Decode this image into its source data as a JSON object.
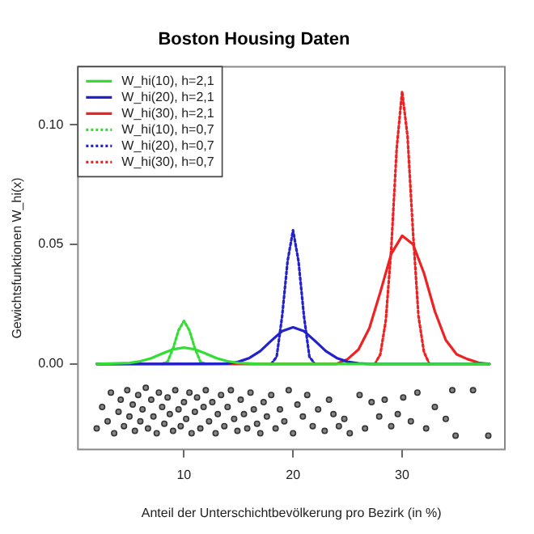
{
  "chart_data": {
    "type": "line",
    "title": "Boston Housing Daten",
    "xlabel": "Anteil der Unterschichtbevölkerung pro Bezirk (in %)",
    "ylabel": "Gewichtsfunktionen W_hi(x)",
    "xlim": [
      0.28,
      39.42
    ],
    "ylim": [
      -0.0358,
      0.1243
    ],
    "xticks": [
      10,
      20,
      30
    ],
    "yticks": [
      {
        "value": 0,
        "label": "0.00"
      },
      {
        "value": 0.05,
        "label": "0.05"
      },
      {
        "value": 0.1,
        "label": "0.10"
      }
    ],
    "grid": false,
    "legend": "top left",
    "series": [
      {
        "name": "W_hi(10), h=2,1",
        "color": "#33dd33",
        "line_style": "solid",
        "marker": "none",
        "x": [
          2,
          5,
          6,
          7,
          8,
          9,
          10,
          11,
          12,
          13,
          14,
          15,
          17,
          38
        ],
        "values": [
          0,
          0.0004,
          0.0011,
          0.0024,
          0.0043,
          0.0061,
          0.0068,
          0.0061,
          0.0043,
          0.0024,
          0.0011,
          0.0004,
          0,
          0
        ]
      },
      {
        "name": "W_hi(20), h=2,1",
        "color": "#2222cc",
        "line_style": "solid",
        "marker": "none",
        "x": [
          2,
          14,
          15,
          16,
          17,
          18,
          19,
          20,
          21,
          22,
          23,
          24,
          25,
          26,
          27,
          38
        ],
        "values": [
          0,
          0.0001,
          0.0009,
          0.0025,
          0.0054,
          0.0097,
          0.0137,
          0.0153,
          0.0137,
          0.0097,
          0.0054,
          0.0025,
          0.0009,
          0.0002,
          0,
          0
        ]
      },
      {
        "name": "W_hi(30), h=2,1",
        "color": "#ee2222",
        "line_style": "solid",
        "marker": "none",
        "x": [
          2,
          24,
          25,
          26,
          27,
          28,
          29,
          30,
          31,
          32,
          33,
          34,
          35,
          36,
          37,
          38
        ],
        "values": [
          0,
          0,
          0.002,
          0.006,
          0.015,
          0.03,
          0.046,
          0.0536,
          0.05,
          0.038,
          0.022,
          0.01,
          0.004,
          0.002,
          0.0005,
          0
        ]
      },
      {
        "name": "W_hi(10), h=0,7",
        "color": "#33dd33",
        "line_style": "dotted",
        "marker": "none",
        "x": [
          8,
          8.5,
          9,
          9.5,
          10,
          10.5,
          11,
          11.5,
          12
        ],
        "values": [
          0,
          0.001,
          0.0065,
          0.014,
          0.018,
          0.014,
          0.0065,
          0.001,
          0
        ]
      },
      {
        "name": "W_hi(20), h=0,7",
        "color": "#2222cc",
        "line_style": "dotted",
        "marker": "none",
        "x": [
          18,
          18.5,
          19,
          19.5,
          20,
          20.5,
          21,
          21.5,
          22
        ],
        "values": [
          0,
          0.003,
          0.02,
          0.043,
          0.0559,
          0.043,
          0.02,
          0.003,
          0
        ]
      },
      {
        "name": "W_hi(30), h=0,7",
        "color": "#ee2222",
        "line_style": "dotted",
        "marker": "none",
        "x": [
          27.5,
          28,
          28.5,
          29,
          29.5,
          30,
          30.5,
          31,
          31.5,
          32,
          32.5
        ],
        "values": [
          0,
          0.004,
          0.018,
          0.048,
          0.09,
          0.114,
          0.095,
          0.055,
          0.02,
          0.005,
          0
        ]
      },
      {
        "type": "scatter",
        "color": "#333333",
        "marker": "circle",
        "x": [
          2.0,
          2.5,
          3.0,
          3.3,
          3.6,
          4.0,
          4.2,
          4.5,
          4.8,
          5.0,
          5.3,
          5.5,
          5.8,
          6.0,
          6.2,
          6.5,
          6.7,
          7.0,
          7.2,
          7.5,
          7.7,
          8.0,
          8.2,
          8.5,
          8.7,
          9.0,
          9.2,
          9.5,
          9.7,
          10.0,
          10.2,
          10.5,
          10.7,
          11.0,
          11.2,
          11.5,
          11.8,
          12.0,
          12.3,
          12.6,
          12.9,
          13.1,
          13.4,
          13.7,
          14.0,
          14.3,
          14.6,
          14.9,
          15.2,
          15.5,
          15.8,
          16.1,
          16.4,
          16.7,
          17.0,
          17.3,
          17.6,
          18.0,
          18.4,
          18.8,
          19.2,
          19.6,
          20.0,
          20.4,
          20.9,
          21.3,
          21.8,
          22.3,
          22.9,
          23.3,
          23.7,
          24.2,
          24.7,
          25.2,
          26.1,
          26.6,
          27.2,
          27.9,
          28.4,
          29.0,
          29.6,
          30.1,
          30.8,
          31.4,
          32.2,
          33.0,
          34.0,
          34.6,
          34.9,
          36.5,
          37.9
        ],
        "values": [
          -0.027,
          -0.018,
          -0.024,
          -0.012,
          -0.029,
          -0.02,
          -0.015,
          -0.026,
          -0.011,
          -0.022,
          -0.017,
          -0.028,
          -0.013,
          -0.024,
          -0.019,
          -0.01,
          -0.027,
          -0.015,
          -0.022,
          -0.029,
          -0.012,
          -0.018,
          -0.025,
          -0.014,
          -0.021,
          -0.028,
          -0.011,
          -0.019,
          -0.026,
          -0.016,
          -0.023,
          -0.012,
          -0.029,
          -0.02,
          -0.014,
          -0.027,
          -0.018,
          -0.011,
          -0.024,
          -0.016,
          -0.029,
          -0.021,
          -0.013,
          -0.026,
          -0.018,
          -0.011,
          -0.023,
          -0.028,
          -0.015,
          -0.021,
          -0.027,
          -0.012,
          -0.019,
          -0.025,
          -0.029,
          -0.016,
          -0.022,
          -0.013,
          -0.027,
          -0.019,
          -0.024,
          -0.011,
          -0.029,
          -0.017,
          -0.022,
          -0.013,
          -0.026,
          -0.019,
          -0.028,
          -0.015,
          -0.021,
          -0.026,
          -0.023,
          -0.029,
          -0.013,
          -0.027,
          -0.016,
          -0.022,
          -0.015,
          -0.026,
          -0.021,
          -0.014,
          -0.024,
          -0.012,
          -0.027,
          -0.018,
          -0.023,
          -0.011,
          -0.03,
          -0.011,
          -0.03
        ]
      }
    ]
  }
}
